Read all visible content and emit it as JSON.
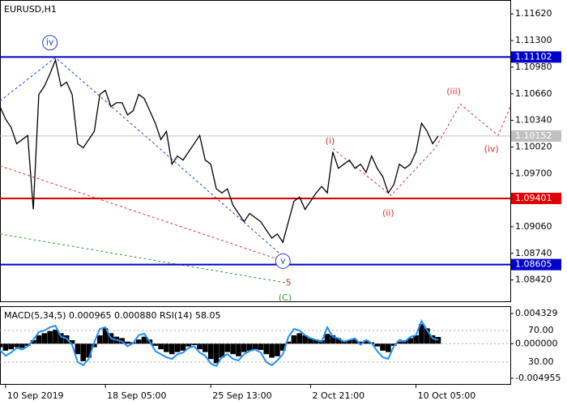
{
  "chart_data": [
    {
      "type": "line",
      "title": "EURUSD,H1",
      "color": "#000000",
      "values": [
        1.10504,
        1.10356,
        1.10257,
        1.10059,
        1.10109,
        1.10158,
        1.09269,
        1.10652,
        1.10751,
        1.10899,
        1.11067,
        1.10751,
        1.108,
        1.10652,
        1.10059,
        1.1001,
        1.10109,
        1.10208,
        1.10652,
        1.10701,
        1.10504,
        1.10553,
        1.10553,
        1.10405,
        1.10455,
        1.10652,
        1.10603,
        1.10455,
        1.10306,
        1.10109,
        1.10208,
        1.09813,
        1.09911,
        1.09862,
        1.09961,
        1.10059,
        1.10158,
        1.09862,
        1.09813,
        1.09516,
        1.09467,
        1.09516,
        1.09319,
        1.0922,
        1.09121,
        1.0922,
        1.0917,
        1.09121,
        1.09022,
        1.08924,
        1.08973,
        1.08874,
        1.09121,
        1.09368,
        1.09417,
        1.09269,
        1.09368,
        1.09467,
        1.09546,
        1.09467,
        1.09961,
        1.09763,
        1.09813,
        1.09862,
        1.09763,
        1.09813,
        1.09714,
        1.09911,
        1.09763,
        1.09664,
        1.09467,
        1.09566,
        1.09813,
        1.09763,
        1.09813,
        1.09961,
        1.10306,
        1.10208,
        1.10059,
        1.10152
      ],
      "xlim": [
        0,
        92
      ],
      "xticks": [
        {
          "value": 1,
          "label": "10 Sep 2019"
        },
        {
          "value": 19,
          "label": "18 Sep 05:00"
        },
        {
          "value": 38,
          "label": "25 Sep 13:00"
        },
        {
          "value": 56,
          "label": "2 Oct 21:00"
        },
        {
          "value": 75,
          "label": "10 Oct 05:00"
        }
      ],
      "ylim": [
        1.08163,
        1.11788
      ],
      "yticks": [
        {
          "value": 1.1162,
          "label": "1.11620"
        },
        {
          "value": 1.113,
          "label": "1.11300"
        },
        {
          "value": 1.1098,
          "label": "1.10980"
        },
        {
          "value": 1.1066,
          "label": "1.10660"
        },
        {
          "value": 1.1034,
          "label": "1.10340"
        },
        {
          "value": 1.1002,
          "label": "1.10020"
        },
        {
          "value": 1.097,
          "label": "1.09700"
        },
        {
          "value": 1.0938,
          "label": "1.09380"
        },
        {
          "value": 1.0906,
          "label": "1.09060"
        },
        {
          "value": 1.0874,
          "label": "1.08740"
        },
        {
          "value": 1.0842,
          "label": "1.08420"
        }
      ],
      "levels": [
        {
          "value": 1.11102,
          "color": "#0000cc",
          "label_color": "#ffffff"
        },
        {
          "value": 1.10152,
          "color": "#c0c0c0",
          "label_color": "#ffffff"
        },
        {
          "value": 1.09401,
          "color": "#e00000",
          "label_color": "#ffffff"
        },
        {
          "value": 1.08605,
          "color": "#0000cc",
          "label_color": "#ffffff"
        }
      ],
      "wave_lines": [
        {
          "color": "#2040d0",
          "x": [
            0,
            10,
            52
          ],
          "y": [
            1.10573,
            1.11096,
            1.08647
          ]
        },
        {
          "color": "#e03030",
          "x": [
            0,
            52
          ],
          "y": [
            1.09793,
            1.08627
          ]
        },
        {
          "color": "#30a030",
          "x": [
            0,
            52
          ],
          "y": [
            1.08973,
            1.08381
          ]
        },
        {
          "color": "#e03030",
          "x": [
            60,
            70.5,
            78.5,
            83,
            89.8,
            92
          ],
          "y": [
            1.1,
            1.09437,
            1.1001,
            1.10534,
            1.10158,
            1.10502
          ]
        }
      ],
      "annotations": [
        {
          "text": "iv",
          "x": 9,
          "y": 1.11274,
          "color": "#2040d0",
          "circle": true
        },
        {
          "text": "v",
          "x": 51,
          "y": 1.08647,
          "color": "#2040d0",
          "circle": true
        },
        {
          "text": "(i)",
          "x": 59.5,
          "y": 1.10089,
          "color": "#e03030",
          "circle": false
        },
        {
          "text": "(ii)",
          "x": 70,
          "y": 1.0922,
          "color": "#e03030",
          "circle": false
        },
        {
          "text": "(iii)",
          "x": 81.8,
          "y": 1.10682,
          "color": "#e03030",
          "circle": false
        },
        {
          "text": "(iv)",
          "x": 88.6,
          "y": 1.0999,
          "color": "#e03030",
          "circle": false
        },
        {
          "text": "5",
          "x": 52,
          "y": 1.08381,
          "color": "#e03030",
          "circle": false
        },
        {
          "text": "(C)",
          "x": 51.4,
          "y": 1.08203,
          "color": "#30a030",
          "circle": false
        }
      ]
    },
    {
      "type": "macd",
      "title": "MACD(5,34,5) 0.000965 0.000880 RSI(14) 58.05",
      "xlim": [
        0,
        92
      ],
      "ylim": [
        -0.004955,
        0.004329
      ],
      "yticks": [
        0.004329,
        {
          "value": 0,
          "label": "0.000000"
        },
        -0.004955
      ],
      "y2lim": [
        9.5,
        91.5
      ],
      "y2ticks": [
        {
          "value": 70,
          "label": "70.00"
        },
        {
          "value": 30,
          "label": "30.00"
        }
      ],
      "series": [
        {
          "type": "bar",
          "color": "#000000",
          "values": [
            -0.0005,
            -0.001,
            -0.0008,
            -0.0005,
            -0.0006,
            -0.0003,
            0.0005,
            0.0012,
            0.0015,
            0.0018,
            0.002,
            0.0015,
            0.0012,
            0.0005,
            -0.0015,
            -0.0025,
            -0.002,
            -0.0005,
            0.0012,
            0.0022,
            0.0015,
            0.001,
            0.0008,
            0.0003,
            0.0002,
            0.0006,
            0.001,
            0.0006,
            -0.0003,
            -0.0008,
            -0.0012,
            -0.0015,
            -0.0012,
            -0.001,
            -0.0004,
            -0.0002,
            -0.0008,
            -0.0012,
            -0.0022,
            -0.0028,
            -0.002,
            -0.0012,
            -0.0015,
            -0.0018,
            -0.0012,
            -0.001,
            -0.0008,
            -0.0009,
            -0.0015,
            -0.002,
            -0.0018,
            -0.001,
            0.0003,
            0.0012,
            0.0015,
            0.0012,
            0.0008,
            0.0006,
            0.0005,
            0.0014,
            0.0012,
            0.0008,
            0.0004,
            0.0005,
            0.0006,
            0.0003,
            0.0005,
            0.0002,
            -0.0004,
            -0.001,
            -0.0012,
            -0.0003,
            0.0003,
            0.0005,
            0.0008,
            0.0012,
            0.0028,
            0.0022,
            0.0012,
            0.000965
          ]
        },
        {
          "type": "line",
          "axis": "y2",
          "color": "#1e90ff",
          "values": [
            45,
            38,
            42,
            48,
            46,
            50,
            58,
            68,
            70,
            74,
            76,
            62,
            60,
            52,
            30,
            26,
            34,
            55,
            72,
            74,
            60,
            58,
            56,
            50,
            54,
            64,
            66,
            56,
            44,
            40,
            36,
            34,
            40,
            42,
            48,
            50,
            42,
            38,
            28,
            25,
            36,
            40,
            34,
            32,
            40,
            44,
            46,
            42,
            30,
            26,
            32,
            40,
            62,
            72,
            70,
            64,
            60,
            58,
            56,
            74,
            62,
            60,
            56,
            58,
            60,
            52,
            58,
            54,
            44,
            36,
            34,
            50,
            58,
            56,
            62,
            64,
            82,
            70,
            60,
            58.05
          ]
        }
      ]
    }
  ]
}
